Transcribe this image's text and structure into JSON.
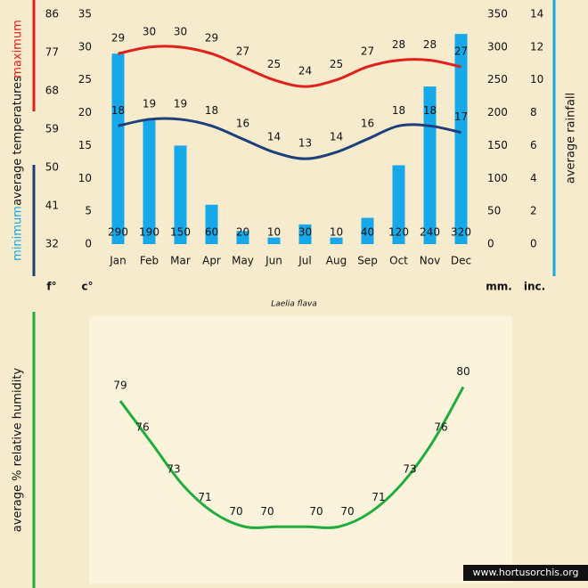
{
  "chart_data": [
    {
      "type": "combo",
      "title": "Laelia flava",
      "categories": [
        "Jan",
        "Feb",
        "Mar",
        "Apr",
        "May",
        "Jun",
        "Jul",
        "Aug",
        "Sep",
        "Oct",
        "Nov",
        "Dec"
      ],
      "ylabel": "average temperatures",
      "y_unit": "c°",
      "y3_unit": "f°",
      "y2label": "average rainfall",
      "y2_unit": "mm.",
      "y4_unit": "inc.",
      "ylim": [
        0,
        35
      ],
      "yticks": [
        0,
        5,
        10,
        15,
        20,
        25,
        30,
        35
      ],
      "y3lim": [
        32,
        86
      ],
      "y3ticks": [
        32,
        41,
        50,
        59,
        68,
        77,
        86
      ],
      "y2lim": [
        0,
        350
      ],
      "y2ticks": [
        0,
        50,
        100,
        150,
        200,
        250,
        300,
        350
      ],
      "y4lim": [
        0,
        14
      ],
      "y4ticks": [
        0,
        2,
        4,
        6,
        8,
        10,
        12,
        14
      ],
      "series": [
        {
          "name": "maximum",
          "type": "line",
          "color": "#e0201c",
          "values": [
            29,
            30,
            30,
            29,
            27,
            25,
            24,
            25,
            27,
            28,
            28,
            27
          ]
        },
        {
          "name": "minimum",
          "type": "line",
          "color": "#1f3f7a",
          "values": [
            18,
            19,
            19,
            18,
            16,
            14,
            13,
            14,
            16,
            18,
            18,
            17
          ]
        },
        {
          "type": "bar",
          "axis": "y2",
          "color": "#16a8e8",
          "values": [
            290,
            190,
            150,
            60,
            20,
            10,
            30,
            10,
            40,
            120,
            240,
            320
          ]
        }
      ]
    },
    {
      "type": "line",
      "ylabel": "average % relative humidity",
      "color": "#1fae3c",
      "ylim": [
        66,
        82
      ],
      "values": [
        79,
        76,
        73,
        71,
        70,
        70,
        70,
        70,
        71,
        73,
        76,
        80
      ]
    }
  ],
  "footer": "www.hortusorchis.org"
}
